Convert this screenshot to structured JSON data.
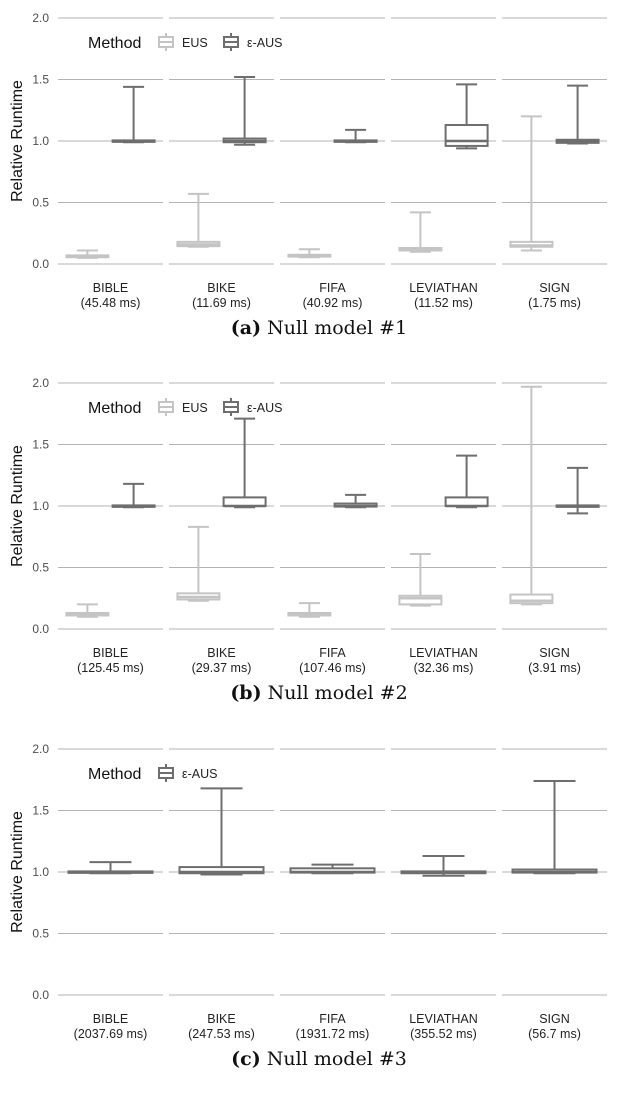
{
  "colors": {
    "eus": "#c4c4c4",
    "eaus": "#6e6e6e",
    "grid": "#b3b3b3",
    "axis_text": "#4d4d4d"
  },
  "chart_data": [
    {
      "type": "box",
      "ylabel": "Relative Runtime",
      "ylim": [
        0,
        2.0
      ],
      "yticks": [
        "0.0",
        "0.5",
        "1.0",
        "1.5",
        "2.0"
      ],
      "legend_title": "Method",
      "legend": [
        "EUS",
        "ε-AUS"
      ],
      "caption_label": "(a)",
      "caption_text": "Null model #1",
      "categories": [
        {
          "name": "BIBLE",
          "time": "(45.48 ms)"
        },
        {
          "name": "BIKE",
          "time": "(11.69 ms)"
        },
        {
          "name": "FIFA",
          "time": "(40.92 ms)"
        },
        {
          "name": "LEVIATHAN",
          "time": "(11.52 ms)"
        },
        {
          "name": "SIGN",
          "time": "(1.75 ms)"
        }
      ],
      "series": [
        {
          "name": "EUS",
          "boxes": [
            {
              "min": 0.05,
              "q1": 0.055,
              "median": 0.06,
              "q3": 0.07,
              "max": 0.11
            },
            {
              "min": 0.14,
              "q1": 0.145,
              "median": 0.16,
              "q3": 0.18,
              "max": 0.57
            },
            {
              "min": 0.055,
              "q1": 0.06,
              "median": 0.065,
              "q3": 0.075,
              "max": 0.12
            },
            {
              "min": 0.1,
              "q1": 0.11,
              "median": 0.12,
              "q3": 0.13,
              "max": 0.42
            },
            {
              "min": 0.11,
              "q1": 0.14,
              "median": 0.15,
              "q3": 0.18,
              "max": 1.2
            }
          ]
        },
        {
          "name": "ε-AUS",
          "boxes": [
            {
              "min": 0.99,
              "q1": 0.995,
              "median": 1.0,
              "q3": 1.005,
              "max": 1.44
            },
            {
              "min": 0.97,
              "q1": 0.99,
              "median": 1.0,
              "q3": 1.02,
              "max": 1.52
            },
            {
              "min": 0.99,
              "q1": 0.995,
              "median": 1.0,
              "q3": 1.005,
              "max": 1.09
            },
            {
              "min": 0.94,
              "q1": 0.96,
              "median": 1.0,
              "q3": 1.13,
              "max": 1.46
            },
            {
              "min": 0.98,
              "q1": 0.985,
              "median": 1.0,
              "q3": 1.01,
              "max": 1.45
            }
          ]
        }
      ]
    },
    {
      "type": "box",
      "ylabel": "Relative Runtime",
      "ylim": [
        0,
        2.0
      ],
      "yticks": [
        "0.0",
        "0.5",
        "1.0",
        "1.5",
        "2.0"
      ],
      "legend_title": "Method",
      "legend": [
        "EUS",
        "ε-AUS"
      ],
      "caption_label": "(b)",
      "caption_text": "Null model #2",
      "categories": [
        {
          "name": "BIBLE",
          "time": "(125.45 ms)"
        },
        {
          "name": "BIKE",
          "time": "(29.37 ms)"
        },
        {
          "name": "FIFA",
          "time": "(107.46 ms)"
        },
        {
          "name": "LEVIATHAN",
          "time": "(32.36 ms)"
        },
        {
          "name": "SIGN",
          "time": "(3.91 ms)"
        }
      ],
      "series": [
        {
          "name": "EUS",
          "boxes": [
            {
              "min": 0.1,
              "q1": 0.11,
              "median": 0.12,
              "q3": 0.13,
              "max": 0.2
            },
            {
              "min": 0.23,
              "q1": 0.24,
              "median": 0.26,
              "q3": 0.29,
              "max": 0.83
            },
            {
              "min": 0.1,
              "q1": 0.11,
              "median": 0.12,
              "q3": 0.13,
              "max": 0.21
            },
            {
              "min": 0.19,
              "q1": 0.2,
              "median": 0.25,
              "q3": 0.27,
              "max": 0.61
            },
            {
              "min": 0.2,
              "q1": 0.21,
              "median": 0.23,
              "q3": 0.28,
              "max": 1.97
            }
          ]
        },
        {
          "name": "ε-AUS",
          "boxes": [
            {
              "min": 0.99,
              "q1": 0.995,
              "median": 1.0,
              "q3": 1.005,
              "max": 1.18
            },
            {
              "min": 0.99,
              "q1": 1.0,
              "median": 1.0,
              "q3": 1.07,
              "max": 1.71
            },
            {
              "min": 0.99,
              "q1": 0.995,
              "median": 1.0,
              "q3": 1.02,
              "max": 1.09
            },
            {
              "min": 0.99,
              "q1": 1.0,
              "median": 1.0,
              "q3": 1.07,
              "max": 1.41
            },
            {
              "min": 0.94,
              "q1": 0.995,
              "median": 1.0,
              "q3": 1.005,
              "max": 1.31
            }
          ]
        }
      ]
    },
    {
      "type": "box",
      "ylabel": "Relative Runtime",
      "ylim": [
        0,
        2.0
      ],
      "yticks": [
        "0.0",
        "0.5",
        "1.0",
        "1.5",
        "2.0"
      ],
      "legend_title": "Method",
      "legend": [
        "ε-AUS"
      ],
      "caption_label": "(c)",
      "caption_text": "Null model #3",
      "categories": [
        {
          "name": "BIBLE",
          "time": "(2037.69 ms)"
        },
        {
          "name": "BIKE",
          "time": "(247.53 ms)"
        },
        {
          "name": "FIFA",
          "time": "(1931.72 ms)"
        },
        {
          "name": "LEVIATHAN",
          "time": "(355.52 ms)"
        },
        {
          "name": "SIGN",
          "time": "(56.7 ms)"
        }
      ],
      "series": [
        {
          "name": "ε-AUS",
          "boxes": [
            {
              "min": 0.99,
              "q1": 0.995,
              "median": 1.0,
              "q3": 1.005,
              "max": 1.08
            },
            {
              "min": 0.98,
              "q1": 0.99,
              "median": 1.0,
              "q3": 1.04,
              "max": 1.68
            },
            {
              "min": 0.99,
              "q1": 0.995,
              "median": 1.0,
              "q3": 1.03,
              "max": 1.06
            },
            {
              "min": 0.97,
              "q1": 0.99,
              "median": 1.0,
              "q3": 1.005,
              "max": 1.13
            },
            {
              "min": 0.99,
              "q1": 0.995,
              "median": 1.0,
              "q3": 1.02,
              "max": 1.74
            }
          ]
        }
      ]
    }
  ]
}
